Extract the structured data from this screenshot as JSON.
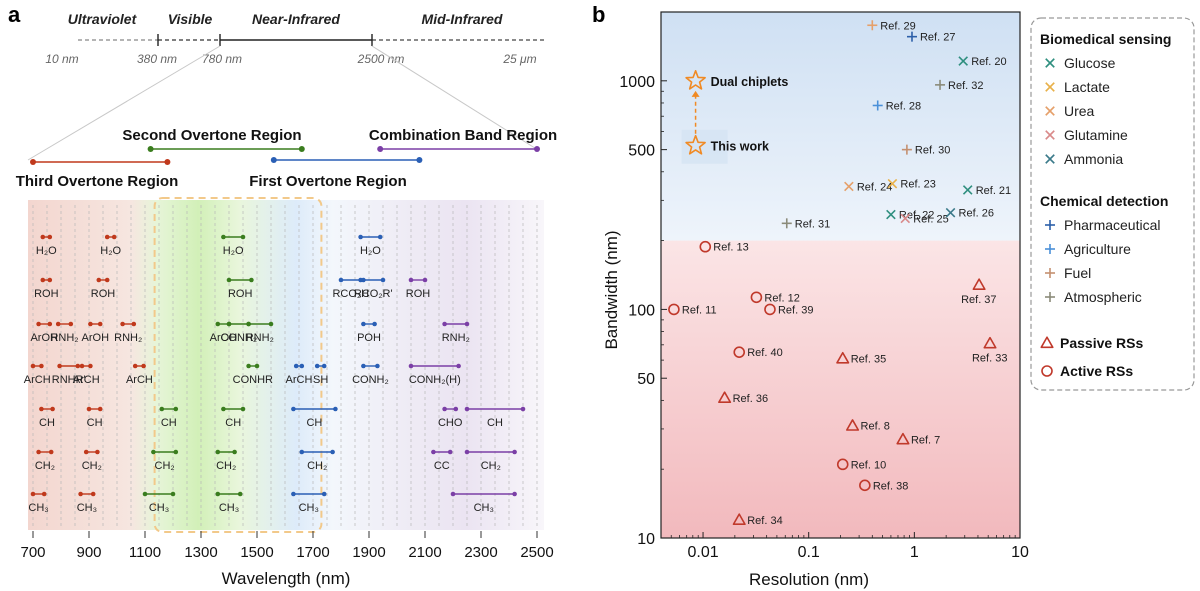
{
  "panel_a": {
    "letter": "a",
    "spectrum": {
      "bands": [
        "Ultraviolet",
        "Visible",
        "Near-Infrared",
        "Mid-Infrared"
      ],
      "ticks": [
        "10 nm",
        "380 nm",
        "780 nm",
        "2500 nm",
        "25 μm"
      ]
    },
    "regions": [
      {
        "label": "Second Overtone Region",
        "start": 1120,
        "end": 1660,
        "color": "#3a7d1e"
      },
      {
        "label": "Combination Band Region",
        "start": 1940,
        "end": 2500,
        "color": "#7b3fa6"
      },
      {
        "label": "Third Overtone Region",
        "start": 700,
        "end": 1180,
        "color": "#c0391c"
      },
      {
        "label": "First Overtone Region",
        "start": 1560,
        "end": 2080,
        "color": "#2a5fb5"
      }
    ],
    "window": {
      "start": 1120,
      "end": 1730
    },
    "axis": {
      "xlabel": "Wavelength (nm)",
      "ticks": [
        "700",
        "900",
        "1100",
        "1300",
        "1500",
        "1700",
        "1900",
        "2100",
        "2300",
        "2500"
      ],
      "xlim": [
        700,
        2500
      ]
    },
    "bonds": [
      {
        "label": "H₂O",
        "x1": 735,
        "x2": 760,
        "row": 0,
        "c": "red"
      },
      {
        "label": "H₂O",
        "x1": 965,
        "x2": 990,
        "row": 0,
        "c": "red"
      },
      {
        "label": "H₂O",
        "x1": 1380,
        "x2": 1450,
        "row": 0,
        "c": "green"
      },
      {
        "label": "H₂O",
        "x1": 1870,
        "x2": 1940,
        "row": 0,
        "c": "blue"
      },
      {
        "label": "ROH",
        "x1": 735,
        "x2": 760,
        "row": 1,
        "c": "red"
      },
      {
        "label": "ROH",
        "x1": 935,
        "x2": 965,
        "row": 1,
        "c": "red"
      },
      {
        "label": "ROH",
        "x1": 1400,
        "x2": 1480,
        "row": 1,
        "c": "green"
      },
      {
        "label": "RCO₂H",
        "x1": 1800,
        "x2": 1870,
        "row": 1,
        "c": "blue"
      },
      {
        "label": "RCO₂R'",
        "x1": 1880,
        "x2": 1950,
        "row": 1,
        "c": "blue"
      },
      {
        "label": "ROH",
        "x1": 2050,
        "x2": 2100,
        "row": 1,
        "c": "purple"
      },
      {
        "label": "ArOH",
        "x1": 720,
        "x2": 760,
        "row": 2,
        "c": "red"
      },
      {
        "label": "RNH₂",
        "x1": 790,
        "x2": 835,
        "row": 2,
        "c": "red"
      },
      {
        "label": "ArOH",
        "x1": 905,
        "x2": 940,
        "row": 2,
        "c": "red"
      },
      {
        "label": "RNH₂",
        "x1": 1020,
        "x2": 1060,
        "row": 2,
        "c": "red"
      },
      {
        "label": "ArOH",
        "x1": 1360,
        "x2": 1400,
        "row": 2,
        "c": "green"
      },
      {
        "label": "CONH₂",
        "x1": 1400,
        "x2": 1470,
        "row": 2,
        "c": "green"
      },
      {
        "label": "RNH₂",
        "x1": 1470,
        "x2": 1550,
        "row": 2,
        "c": "green"
      },
      {
        "label": "POH",
        "x1": 1880,
        "x2": 1920,
        "row": 2,
        "c": "blue"
      },
      {
        "label": "RNH₂",
        "x1": 2170,
        "x2": 2250,
        "row": 2,
        "c": "purple"
      },
      {
        "label": "ArCH",
        "x1": 700,
        "x2": 730,
        "row": 3,
        "c": "red"
      },
      {
        "label": "RNHR'",
        "x1": 795,
        "x2": 860,
        "row": 3,
        "c": "red"
      },
      {
        "label": "ArCH",
        "x1": 875,
        "x2": 905,
        "row": 3,
        "c": "red"
      },
      {
        "label": "ArCH",
        "x1": 1065,
        "x2": 1095,
        "row": 3,
        "c": "red"
      },
      {
        "label": "CONHR",
        "x1": 1470,
        "x2": 1500,
        "row": 3,
        "c": "green"
      },
      {
        "label": "ArCH",
        "x1": 1640,
        "x2": 1660,
        "row": 3,
        "c": "blue"
      },
      {
        "label": "SH",
        "x1": 1715,
        "x2": 1740,
        "row": 3,
        "c": "blue"
      },
      {
        "label": "CONH₂",
        "x1": 1880,
        "x2": 1930,
        "row": 3,
        "c": "blue"
      },
      {
        "label": "CONH₂(H)",
        "x1": 2050,
        "x2": 2220,
        "row": 3,
        "c": "purple"
      },
      {
        "label": "CH",
        "x1": 730,
        "x2": 770,
        "row": 4,
        "c": "red"
      },
      {
        "label": "CH",
        "x1": 900,
        "x2": 940,
        "row": 4,
        "c": "red"
      },
      {
        "label": "CH",
        "x1": 1160,
        "x2": 1210,
        "row": 4,
        "c": "green"
      },
      {
        "label": "CH",
        "x1": 1380,
        "x2": 1450,
        "row": 4,
        "c": "green"
      },
      {
        "label": "CH",
        "x1": 1630,
        "x2": 1780,
        "row": 4,
        "c": "blue"
      },
      {
        "label": "CHO",
        "x1": 2170,
        "x2": 2210,
        "row": 4,
        "c": "purple"
      },
      {
        "label": "CH",
        "x1": 2250,
        "x2": 2450,
        "row": 4,
        "c": "purple"
      },
      {
        "label": "CH₂",
        "x1": 720,
        "x2": 765,
        "row": 5,
        "c": "red"
      },
      {
        "label": "CH₂",
        "x1": 890,
        "x2": 930,
        "row": 5,
        "c": "red"
      },
      {
        "label": "CH₂",
        "x1": 1130,
        "x2": 1210,
        "row": 5,
        "c": "green"
      },
      {
        "label": "CH₂",
        "x1": 1360,
        "x2": 1420,
        "row": 5,
        "c": "green"
      },
      {
        "label": "CH₂",
        "x1": 1660,
        "x2": 1770,
        "row": 5,
        "c": "blue"
      },
      {
        "label": "CC",
        "x1": 2130,
        "x2": 2190,
        "row": 5,
        "c": "purple"
      },
      {
        "label": "CH₂",
        "x1": 2250,
        "x2": 2420,
        "row": 5,
        "c": "purple"
      },
      {
        "label": "CH₃",
        "x1": 700,
        "x2": 740,
        "row": 6,
        "c": "red"
      },
      {
        "label": "CH₃",
        "x1": 870,
        "x2": 915,
        "row": 6,
        "c": "red"
      },
      {
        "label": "CH₃",
        "x1": 1100,
        "x2": 1200,
        "row": 6,
        "c": "green"
      },
      {
        "label": "CH₃",
        "x1": 1360,
        "x2": 1440,
        "row": 6,
        "c": "green"
      },
      {
        "label": "CH₃",
        "x1": 1630,
        "x2": 1740,
        "row": 6,
        "c": "blue"
      },
      {
        "label": "CH₃",
        "x1": 2200,
        "x2": 2420,
        "row": 6,
        "c": "purple"
      }
    ],
    "bond_colors": {
      "red": "#c0391c",
      "green": "#3a7d1e",
      "blue": "#2a5fb5",
      "purple": "#7b3fa6"
    }
  },
  "chart_data": {
    "type": "scatter",
    "letter": "b",
    "xlabel": "Resolution (nm)",
    "ylabel": "Bandwidth (nm)",
    "xscale": "log",
    "yscale": "log",
    "xlim": [
      0.004,
      10
    ],
    "ylim": [
      10,
      2000
    ],
    "xticks": [
      "0.01",
      "0.1",
      "1",
      "10"
    ],
    "yticks": [
      "10",
      "50",
      "100",
      "500",
      "1000"
    ],
    "boundary_y": 200,
    "points": [
      {
        "label": "Ref. 29",
        "x": 0.4,
        "y": 1750,
        "m": "plus",
        "c": "#e5a06a"
      },
      {
        "label": "Ref. 27",
        "x": 0.95,
        "y": 1560,
        "m": "plus",
        "c": "#2c5fa8"
      },
      {
        "label": "Ref. 20",
        "x": 2.9,
        "y": 1220,
        "m": "x",
        "c": "#2f8f7f"
      },
      {
        "label": "Ref. 32",
        "x": 1.75,
        "y": 960,
        "m": "plus",
        "c": "#8b8b7a"
      },
      {
        "label": "Ref. 28",
        "x": 0.45,
        "y": 780,
        "m": "plus",
        "c": "#4a90d9"
      },
      {
        "label": "Ref. 30",
        "x": 0.85,
        "y": 500,
        "m": "plus",
        "c": "#c49070"
      },
      {
        "label": "Ref. 24",
        "x": 0.24,
        "y": 345,
        "m": "x",
        "c": "#e5a06a"
      },
      {
        "label": "Ref. 23",
        "x": 0.62,
        "y": 355,
        "m": "x",
        "c": "#e8b14a"
      },
      {
        "label": "Ref. 21",
        "x": 3.2,
        "y": 333,
        "m": "x",
        "c": "#2f8f7f"
      },
      {
        "label": "Ref. 22",
        "x": 0.6,
        "y": 260,
        "m": "x",
        "c": "#2f8f7f"
      },
      {
        "label": "Ref. 25",
        "x": 0.82,
        "y": 250,
        "m": "x",
        "c": "#d98a8a"
      },
      {
        "label": "Ref. 26",
        "x": 2.2,
        "y": 265,
        "m": "x",
        "c": "#3b7a8a"
      },
      {
        "label": "Ref. 31",
        "x": 0.062,
        "y": 238,
        "m": "plus",
        "c": "#8b8b7a"
      },
      {
        "label": "Ref. 13",
        "x": 0.0105,
        "y": 188,
        "m": "circle",
        "c": "#c0392b"
      },
      {
        "label": "Ref. 12",
        "x": 0.032,
        "y": 113,
        "m": "circle",
        "c": "#c0392b"
      },
      {
        "label": "Ref. 39",
        "x": 0.043,
        "y": 100,
        "m": "circle",
        "c": "#c0392b"
      },
      {
        "label": "Ref. 11",
        "x": 0.0053,
        "y": 100,
        "m": "circle",
        "c": "#c0392b"
      },
      {
        "label": "Ref. 37",
        "x": 4.1,
        "y": 128,
        "m": "triangle",
        "c": "#c0392b"
      },
      {
        "label": "Ref. 33",
        "x": 5.2,
        "y": 71,
        "m": "triangle",
        "c": "#c0392b"
      },
      {
        "label": "Ref. 40",
        "x": 0.022,
        "y": 65,
        "m": "circle",
        "c": "#c0392b"
      },
      {
        "label": "Ref. 35",
        "x": 0.21,
        "y": 61,
        "m": "triangle",
        "c": "#c0392b"
      },
      {
        "label": "Ref. 36",
        "x": 0.016,
        "y": 41,
        "m": "triangle",
        "c": "#c0392b"
      },
      {
        "label": "Ref. 8",
        "x": 0.26,
        "y": 31,
        "m": "triangle",
        "c": "#c0392b"
      },
      {
        "label": "Ref. 7",
        "x": 0.78,
        "y": 27,
        "m": "triangle",
        "c": "#c0392b"
      },
      {
        "label": "Ref. 10",
        "x": 0.21,
        "y": 21,
        "m": "circle",
        "c": "#c0392b"
      },
      {
        "label": "Ref. 38",
        "x": 0.34,
        "y": 17,
        "m": "circle",
        "c": "#c0392b"
      },
      {
        "label": "Ref. 34",
        "x": 0.022,
        "y": 12,
        "m": "triangle",
        "c": "#c0392b"
      }
    ],
    "highlights": [
      {
        "label": "Dual chiplets",
        "x": 0.0085,
        "y": 1000,
        "c": "#f08a24"
      },
      {
        "label": "This work",
        "x": 0.0085,
        "y": 520,
        "c": "#f08a24"
      }
    ],
    "legend": {
      "placement": "right",
      "groups": [
        {
          "title": "Biomedical sensing",
          "items": [
            {
              "label": "Glucose",
              "m": "x",
              "c": "#2f8f7f"
            },
            {
              "label": "Lactate",
              "m": "x",
              "c": "#e8b14a"
            },
            {
              "label": "Urea",
              "m": "x",
              "c": "#e5a06a"
            },
            {
              "label": "Glutamine",
              "m": "x",
              "c": "#d98a8a"
            },
            {
              "label": "Ammonia",
              "m": "x",
              "c": "#3b7a8a"
            }
          ]
        },
        {
          "title": "Chemical detection",
          "items": [
            {
              "label": "Pharmaceutical",
              "m": "plus",
              "c": "#2c5fa8"
            },
            {
              "label": "Agriculture",
              "m": "plus",
              "c": "#4a90d9"
            },
            {
              "label": "Fuel",
              "m": "plus",
              "c": "#c49070"
            },
            {
              "label": "Atmospheric",
              "m": "plus",
              "c": "#8b8b7a"
            }
          ]
        }
      ],
      "bold_items": [
        {
          "label": "Passive RSs",
          "m": "triangle",
          "c": "#c0392b"
        },
        {
          "label": "Active RSs",
          "m": "circle",
          "c": "#c0392b"
        }
      ]
    }
  }
}
